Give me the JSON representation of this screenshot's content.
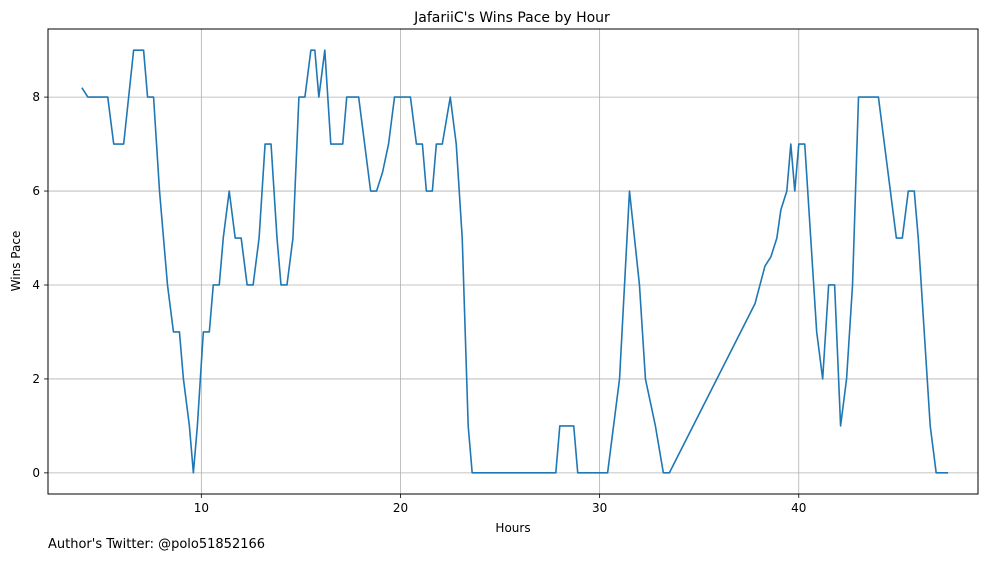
{
  "chart_data": {
    "type": "line",
    "title": "JafariiC's Wins Pace by Hour",
    "xlabel": "Hours",
    "ylabel": "Wins Pace",
    "xlim": [
      2.3,
      49.0
    ],
    "ylim": [
      -0.45,
      9.45
    ],
    "xticks": [
      10,
      20,
      30,
      40
    ],
    "yticks": [
      0,
      2,
      4,
      6,
      8
    ],
    "grid": true,
    "line_color": "#1f77b4",
    "series": [
      {
        "x": [
          4.0,
          4.3,
          5.3,
          5.6,
          6.1,
          6.6,
          7.1,
          7.3,
          7.6,
          7.9,
          8.3,
          8.6,
          8.9,
          9.1,
          9.4,
          9.6,
          9.8,
          10.1,
          10.4,
          10.6,
          10.9,
          11.1,
          11.4,
          11.7,
          12.0,
          12.3,
          12.6,
          12.9,
          13.2,
          13.5,
          13.8,
          14.0,
          14.3,
          14.6,
          14.9,
          15.2,
          15.5,
          15.7,
          15.9,
          16.2,
          16.5,
          17.1,
          17.3,
          17.9,
          18.2,
          18.5,
          18.8,
          19.1,
          19.4,
          19.7,
          20.0,
          20.5,
          20.8,
          21.1,
          21.3,
          21.6,
          21.8,
          22.1,
          22.5,
          22.8,
          23.1,
          23.4,
          23.6,
          27.8,
          28.0,
          28.7,
          28.9,
          30.4,
          31.0,
          31.5,
          32.0,
          32.3,
          32.8,
          33.2,
          33.5,
          37.8,
          38.3,
          38.6,
          38.9,
          39.1,
          39.4,
          39.6,
          39.8,
          40.0,
          40.3,
          40.6,
          40.9,
          41.2,
          41.5,
          41.8,
          42.1,
          42.4,
          42.7,
          43.0,
          43.3,
          43.6,
          44.0,
          44.3,
          44.6,
          44.9,
          45.2,
          45.5,
          45.8,
          46.0,
          46.3,
          46.6,
          46.9,
          47.2,
          47.5
        ],
        "values": [
          8.2,
          8.0,
          8.0,
          7.0,
          7.0,
          9.0,
          9.0,
          8.0,
          8.0,
          6.0,
          4.0,
          3.0,
          3.0,
          2.0,
          1.0,
          0.0,
          1.0,
          3.0,
          3.0,
          4.0,
          4.0,
          5.0,
          6.0,
          5.0,
          5.0,
          4.0,
          4.0,
          5.0,
          7.0,
          7.0,
          5.0,
          4.0,
          4.0,
          5.0,
          8.0,
          8.0,
          9.0,
          9.0,
          8.0,
          9.0,
          7.0,
          7.0,
          8.0,
          8.0,
          7.0,
          6.0,
          6.0,
          6.4,
          7.0,
          8.0,
          8.0,
          8.0,
          7.0,
          7.0,
          6.0,
          6.0,
          7.0,
          7.0,
          8.0,
          7.0,
          5.0,
          1.0,
          0.0,
          0.0,
          1.0,
          1.0,
          0.0,
          0.0,
          2.0,
          6.0,
          4.0,
          2.0,
          1.0,
          0.0,
          0.0,
          3.6,
          4.4,
          4.6,
          5.0,
          5.6,
          6.0,
          7.0,
          6.0,
          7.0,
          7.0,
          5.0,
          3.0,
          2.0,
          4.0,
          4.0,
          1.0,
          2.0,
          4.0,
          8.0,
          8.0,
          8.0,
          8.0,
          7.0,
          6.0,
          5.0,
          5.0,
          6.0,
          6.0,
          5.0,
          3.0,
          1.0,
          0.0,
          0.0,
          0.0
        ]
      }
    ]
  },
  "footer": {
    "credit": "Author's Twitter: @polo51852166"
  }
}
